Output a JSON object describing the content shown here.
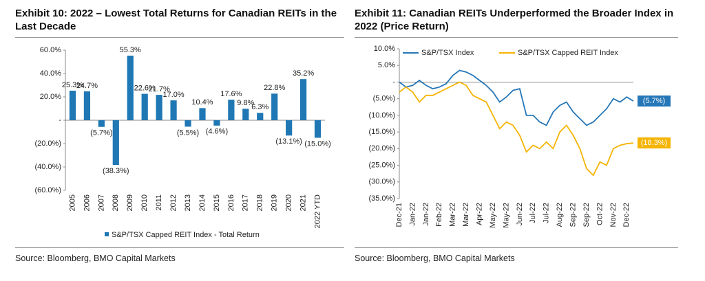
{
  "chart_data": [
    {
      "type": "bar",
      "title": "Exhibit 10: 2022 – Lowest Total Returns for Canadian REITs in the Last Decade",
      "categories": [
        "2005",
        "2006",
        "2007",
        "2008",
        "2009",
        "2010",
        "2011",
        "2012",
        "2013",
        "2014",
        "2015",
        "2016",
        "2017",
        "2018",
        "2019",
        "2020",
        "2021",
        "2022 YTD"
      ],
      "series": [
        {
          "name": "S&P/TSX Capped REIT Index - Total Return",
          "color": "#1f77b4",
          "values": [
            25.3,
            24.7,
            -5.7,
            -38.3,
            55.3,
            22.6,
            21.7,
            17.0,
            -5.5,
            10.4,
            -4.6,
            17.6,
            9.8,
            6.3,
            22.8,
            -13.1,
            35.2,
            -15.0
          ],
          "value_labels": [
            "25.3%",
            "24.7%",
            "(5.7%)",
            "(38.3%)",
            "55.3%",
            "22.6%",
            "21.7%",
            "17.0%",
            "(5.5%)",
            "10.4%",
            "(4.6%)",
            "17.6%",
            "9.8%",
            "6.3%",
            "22.8%",
            "(13.1%)",
            "35.2%",
            "(15.0%)"
          ]
        }
      ],
      "ylim": [
        -60,
        60
      ],
      "yticks": [
        {
          "value": 60,
          "label": "60.0%"
        },
        {
          "value": 40,
          "label": "40.0%"
        },
        {
          "value": 20,
          "label": "20.0%"
        },
        {
          "value": 0,
          "label": "-"
        },
        {
          "value": -20,
          "label": "(20.0%)"
        },
        {
          "value": -40,
          "label": "(40.0%)"
        },
        {
          "value": -60,
          "label": "(60.0%)"
        }
      ],
      "source": "Source: Bloomberg, BMO Capital Markets"
    },
    {
      "type": "line",
      "title": "Exhibit 11: Canadian REITs Underperformed the Broader Index in 2022 (Price Return)",
      "categories": [
        "Dec-21",
        null,
        "Jan-22",
        null,
        "Jan-22",
        null,
        "Feb-22",
        null,
        "Mar-22",
        null,
        "Mar-22",
        null,
        "Apr-22",
        null,
        "May-22",
        null,
        "May-22",
        null,
        "Jun-22",
        null,
        "Jul-22",
        null,
        "Jul-22",
        null,
        "Aug-22",
        null,
        "Sep-22",
        null,
        "Sep-22",
        null,
        "Oct-22",
        null,
        "Nov-22",
        null,
        "Dec-22",
        null
      ],
      "series": [
        {
          "name": "S&P/TSX Index",
          "color": "#2677b8",
          "end_label": "(5.7%)",
          "values": [
            0,
            -1.5,
            -1,
            0.5,
            -1,
            -2,
            -1.5,
            -0.5,
            2,
            3.5,
            3,
            2,
            0.5,
            -1,
            -3,
            -6,
            -4.5,
            -2.5,
            -2,
            -10,
            -10,
            -12,
            -13,
            -9,
            -7,
            -6,
            -9,
            -11,
            -13,
            -12,
            -10,
            -8,
            -5,
            -6,
            -4.5,
            -5.7
          ]
        },
        {
          "name": "S&P/TSX Capped REIT Index",
          "color": "#f5b400",
          "end_label": "(18.3%)",
          "values": [
            -3,
            -1.5,
            -3,
            -6,
            -4,
            -4,
            -3,
            -2,
            -1,
            0,
            -1,
            -4,
            -5,
            -6,
            -10,
            -14,
            -12,
            -13,
            -16,
            -21,
            -19,
            -20,
            -18,
            -20,
            -15,
            -13,
            -16,
            -20,
            -26,
            -28,
            -24,
            -25,
            -20,
            -19,
            -18.5,
            -18.3
          ]
        }
      ],
      "ylim": [
        -35,
        10
      ],
      "yticks": [
        {
          "value": 10,
          "label": "10.0%"
        },
        {
          "value": 5,
          "label": "5.0%"
        },
        {
          "value": 0,
          "label": "-"
        },
        {
          "value": -5,
          "label": "(5.0%)"
        },
        {
          "value": -10,
          "label": "(10.0%)"
        },
        {
          "value": -15,
          "label": "(15.0%)"
        },
        {
          "value": -20,
          "label": "(20.0%)"
        },
        {
          "value": -25,
          "label": "(25.0%)"
        },
        {
          "value": -30,
          "label": "(30.0%)"
        },
        {
          "value": -35,
          "label": "(35.0%)"
        }
      ],
      "legend": "top",
      "source": "Source: Bloomberg, BMO Capital Markets"
    }
  ]
}
